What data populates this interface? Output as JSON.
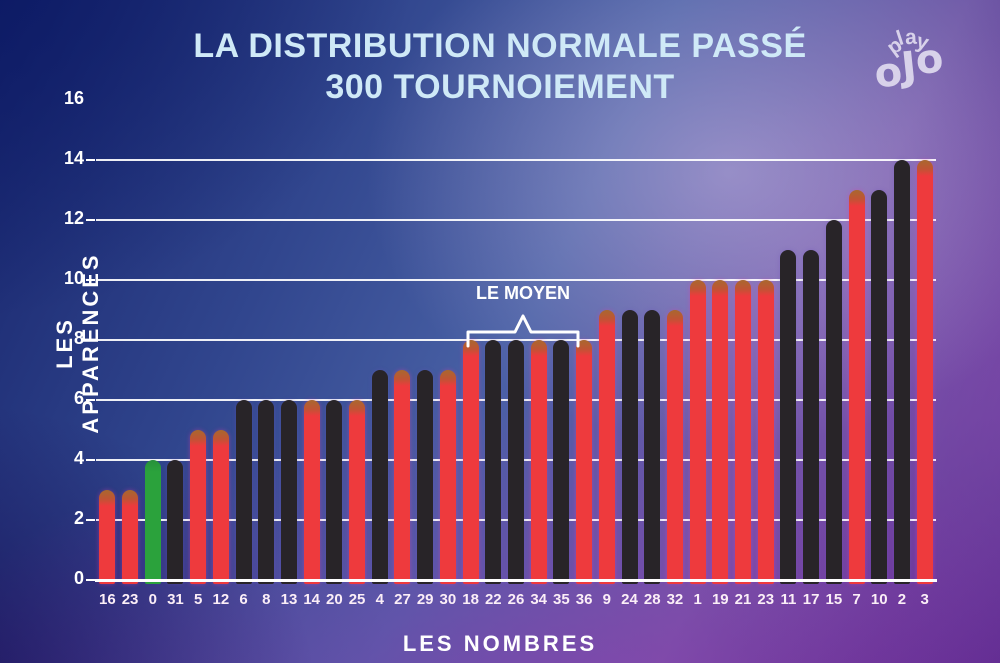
{
  "title": {
    "line1": "LA DISTRIBUTION NORMALE PASSÉ",
    "line2": "300 TOURNOIEMENT"
  },
  "logo": {
    "word_top": "play",
    "word_bottom": "oJo"
  },
  "axes": {
    "y_label": "LES APPARENCES",
    "x_label": "LES NOMBRES",
    "y_ticks": [
      0,
      2,
      4,
      6,
      8,
      10,
      12,
      14,
      16
    ]
  },
  "annotation": {
    "label": "LE MOYEN"
  },
  "colors": {
    "red_bar": "#ee3a3d",
    "red_bar_cap": "#a9672f",
    "black_bar": "#282428",
    "green_bar": "#2ba23c",
    "grid": "#ffffff",
    "title_text": "#cfe9f7",
    "axis_text": "#ffffff",
    "logo_text": "#d8d2ea"
  },
  "chart_data": {
    "type": "bar",
    "title": "LA DISTRIBUTION NORMALE PASSÉ 300 TOURNOIEMENT",
    "xlabel": "LES NOMBRES",
    "ylabel": "LES APPARENCES",
    "ylim": [
      0,
      16
    ],
    "grid": true,
    "legend": false,
    "annotation": {
      "label": "LE MOYEN",
      "covers_categories": [
        "18",
        "22",
        "26",
        "34",
        "35",
        "36"
      ]
    },
    "categories": [
      "16",
      "23",
      "0",
      "31",
      "5",
      "12",
      "6",
      "8",
      "13",
      "14",
      "20",
      "25",
      "4",
      "27",
      "29",
      "30",
      "18",
      "22",
      "26",
      "34",
      "35",
      "36",
      "9",
      "24",
      "28",
      "32",
      "1",
      "19",
      "21",
      "23",
      "11",
      "17",
      "15",
      "7",
      "10",
      "2",
      "3"
    ],
    "values": [
      3,
      3,
      4,
      4,
      5,
      5,
      6,
      6,
      6,
      6,
      6,
      6,
      7,
      7,
      7,
      7,
      8,
      8,
      8,
      8,
      8,
      8,
      9,
      9,
      9,
      9,
      10,
      10,
      10,
      10,
      11,
      11,
      12,
      13,
      13,
      14,
      14
    ],
    "bar_colors": [
      "red",
      "red",
      "green",
      "black",
      "red",
      "red",
      "black",
      "black",
      "black",
      "red",
      "black",
      "red",
      "black",
      "red",
      "black",
      "red",
      "red",
      "black",
      "black",
      "red",
      "black",
      "red",
      "red",
      "black",
      "black",
      "red",
      "red",
      "red",
      "red",
      "red",
      "black",
      "black",
      "black",
      "red",
      "black",
      "black",
      "red"
    ]
  }
}
